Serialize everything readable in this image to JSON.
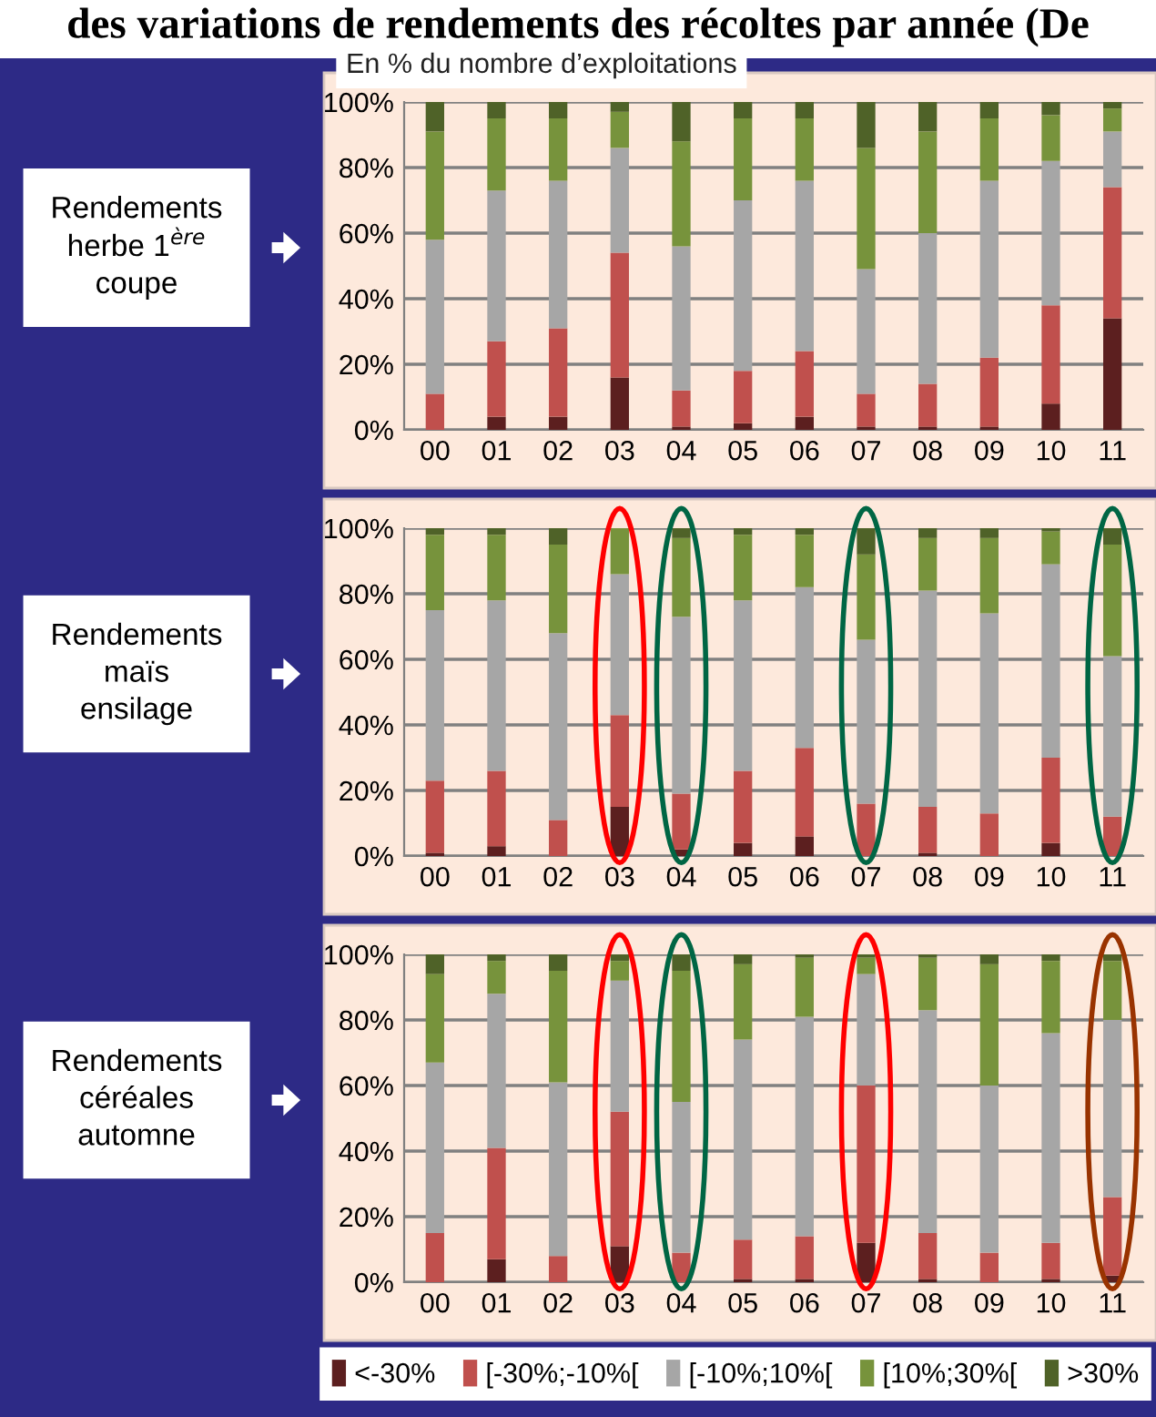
{
  "chart_data": [
    {
      "type": "bar",
      "stacked": true,
      "title": "des variations de rendements des récoltes par année (De",
      "subtitle": "En % du nombre d’exploitations",
      "ylabel": "Rendements\nherbe 1$^{ère}$\ncoupe",
      "categories": [
        "00",
        "01",
        "02",
        "03",
        "04",
        "05",
        "06",
        "07",
        "08",
        "09",
        "10",
        "11"
      ],
      "ylim": [
        0,
        100
      ],
      "yticks": [
        {
          "value": 0,
          "label": "0%"
        },
        {
          "value": 20,
          "label": "20%"
        },
        {
          "value": 40,
          "label": "40%"
        },
        {
          "value": 60,
          "label": "60%"
        },
        {
          "value": 80,
          "label": "80%"
        },
        {
          "value": 100,
          "label": "100%"
        }
      ],
      "grid": "y",
      "legend": "bottom",
      "series": [
        {
          "name": "<-30%",
          "color": "#5c1f1f",
          "values": [
            0,
            4,
            4,
            16,
            1,
            2,
            4,
            1,
            1,
            1,
            8,
            34
          ]
        },
        {
          "name": "[-30%;-10%[",
          "color": "#c0504d",
          "values": [
            11,
            23,
            27,
            38,
            11,
            16,
            20,
            10,
            13,
            21,
            30,
            40
          ]
        },
        {
          "name": "[-10%;10%[",
          "color": "#a6a6a6",
          "values": [
            47,
            46,
            45,
            32,
            44,
            52,
            52,
            38,
            46,
            54,
            44,
            17
          ]
        },
        {
          "name": "[10%;30%[",
          "color": "#77933c",
          "values": [
            33,
            22,
            19,
            11,
            32,
            25,
            19,
            37,
            31,
            19,
            14,
            7
          ]
        },
        {
          "name": ">30%",
          "color": "#4f6228",
          "values": [
            9,
            5,
            5,
            3,
            12,
            5,
            5,
            14,
            9,
            5,
            4,
            2
          ]
        }
      ]
    },
    {
      "type": "bar",
      "stacked": true,
      "ylabel": "Rendements\nmaïs\nensilage",
      "categories": [
        "00",
        "01",
        "02",
        "03",
        "04",
        "05",
        "06",
        "07",
        "08",
        "09",
        "10",
        "11"
      ],
      "ylim": [
        0,
        100
      ],
      "yticks": [
        {
          "value": 0,
          "label": "0%"
        },
        {
          "value": 20,
          "label": "20%"
        },
        {
          "value": 40,
          "label": "40%"
        },
        {
          "value": 60,
          "label": "60%"
        },
        {
          "value": 80,
          "label": "80%"
        },
        {
          "value": 100,
          "label": "100%"
        }
      ],
      "grid": "y",
      "series": [
        {
          "color": "#5c1f1f",
          "values": [
            1,
            3,
            0,
            15,
            2,
            4,
            6,
            0,
            1,
            0,
            4,
            0
          ]
        },
        {
          "color": "#c0504d",
          "values": [
            22,
            23,
            11,
            28,
            17,
            22,
            27,
            16,
            14,
            13,
            26,
            12
          ]
        },
        {
          "color": "#a6a6a6",
          "values": [
            52,
            52,
            57,
            43,
            54,
            52,
            49,
            50,
            66,
            61,
            59,
            49
          ]
        },
        {
          "color": "#77933c",
          "values": [
            23,
            20,
            27,
            14,
            24,
            20,
            16,
            26,
            16,
            23,
            10,
            34
          ]
        },
        {
          "color": "#4f6228",
          "values": [
            2,
            2,
            5,
            0,
            3,
            2,
            2,
            8,
            3,
            3,
            1,
            5
          ]
        }
      ]
    },
    {
      "type": "bar",
      "stacked": true,
      "ylabel": "Rendements\ncéréales\nautomne",
      "categories": [
        "00",
        "01",
        "02",
        "03",
        "04",
        "05",
        "06",
        "07",
        "08",
        "09",
        "10",
        "11"
      ],
      "ylim": [
        0,
        100
      ],
      "yticks": [
        {
          "value": 0,
          "label": "0%"
        },
        {
          "value": 20,
          "label": "20%"
        },
        {
          "value": 40,
          "label": "40%"
        },
        {
          "value": 60,
          "label": "60%"
        },
        {
          "value": 80,
          "label": "80%"
        },
        {
          "value": 100,
          "label": "100%"
        }
      ],
      "grid": "y",
      "series": [
        {
          "color": "#5c1f1f",
          "values": [
            0,
            7,
            0,
            11,
            0,
            1,
            1,
            12,
            1,
            0,
            1,
            2
          ]
        },
        {
          "color": "#c0504d",
          "values": [
            15,
            34,
            8,
            41,
            9,
            12,
            13,
            48,
            14,
            9,
            11,
            24
          ]
        },
        {
          "color": "#a6a6a6",
          "values": [
            52,
            47,
            53,
            40,
            46,
            61,
            67,
            34,
            68,
            51,
            64,
            54
          ]
        },
        {
          "color": "#77933c",
          "values": [
            27,
            10,
            34,
            6,
            40,
            23,
            18,
            5,
            16,
            37,
            22,
            18
          ]
        },
        {
          "color": "#4f6228",
          "values": [
            6,
            2,
            5,
            2,
            5,
            3,
            1,
            1,
            1,
            3,
            2,
            2
          ]
        }
      ]
    }
  ]
}
